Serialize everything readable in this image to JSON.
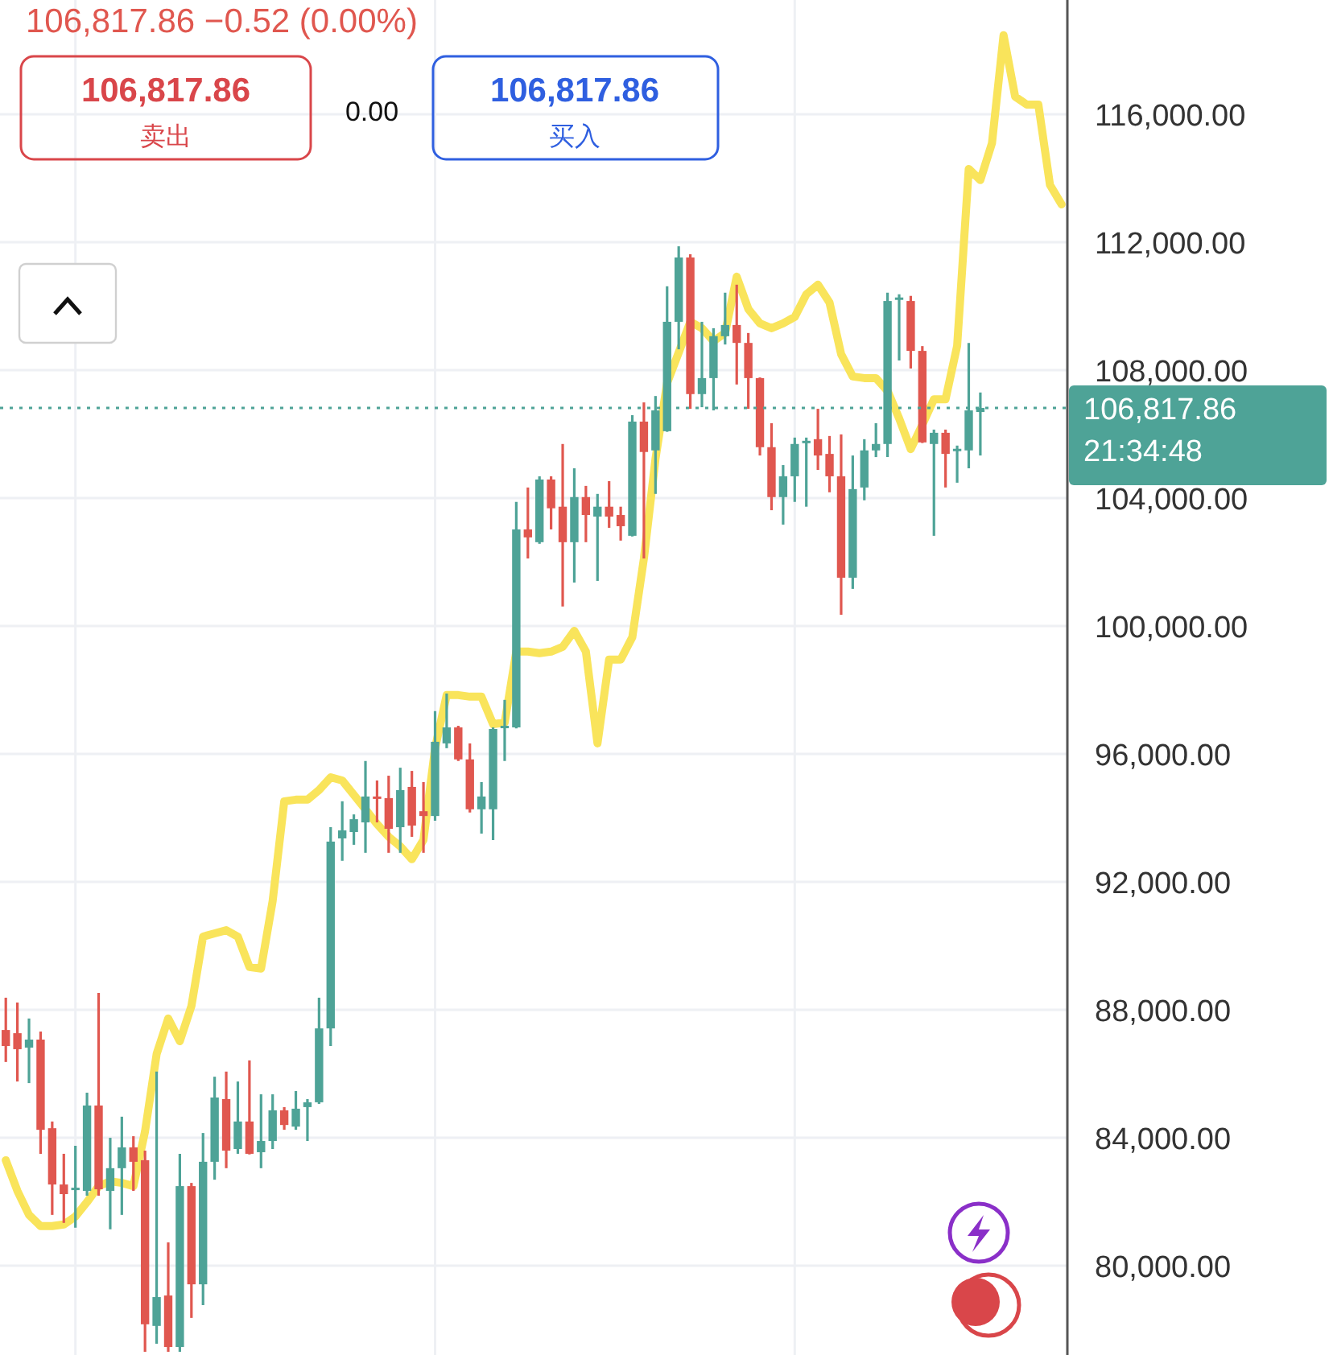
{
  "chart_data": {
    "type": "candlestick",
    "title": "106,817.86 −0.52 (0.00%)",
    "annotations": [
      "106,817.86",
      "卖出",
      "0.00",
      "106,817.86",
      "买入"
    ],
    "categories": [
      null,
      null,
      null,
      null,
      null,
      null,
      null,
      null,
      null,
      null,
      null,
      null,
      null,
      null,
      null,
      null,
      null,
      null,
      null,
      null,
      null,
      null,
      null,
      null,
      null,
      null,
      null,
      null,
      null,
      null,
      null,
      null,
      null,
      null,
      null,
      null,
      null,
      null,
      null,
      null,
      null,
      null,
      null,
      null,
      null,
      null,
      null,
      null,
      null,
      null,
      null,
      null,
      null,
      null,
      null,
      null,
      null,
      null,
      null,
      null,
      null,
      null,
      null,
      null,
      null,
      null,
      null,
      null,
      null,
      null,
      null,
      null,
      null,
      null,
      null,
      null,
      null,
      null,
      null,
      null,
      null,
      null,
      null,
      null,
      null,
      null,
      null,
      null,
      null,
      null,
      null,
      null
    ],
    "ohlc": [
      [
        87370,
        88380,
        86370,
        86870
      ],
      [
        87270,
        88230,
        85760,
        86770
      ],
      [
        86820,
        87730,
        85710,
        87070
      ],
      [
        87070,
        87320,
        83500,
        84250
      ],
      [
        84300,
        84510,
        81590,
        82540
      ],
      [
        82540,
        83500,
        81340,
        82240
      ],
      [
        82390,
        83750,
        81190,
        82440
      ],
      [
        82340,
        85410,
        82190,
        85010
      ],
      [
        85010,
        88530,
        82190,
        82390
      ],
      [
        82340,
        84000,
        81140,
        83050
      ],
      [
        83050,
        84660,
        81590,
        83700
      ],
      [
        83700,
        84050,
        82340,
        83250
      ],
      [
        83300,
        83600,
        77310,
        78170
      ],
      [
        78120,
        86070,
        77560,
        79020
      ],
      [
        79070,
        80730,
        77310,
        77460
      ],
      [
        77460,
        83500,
        77310,
        82490
      ],
      [
        82490,
        82590,
        78370,
        79420
      ],
      [
        79420,
        84150,
        78770,
        83250
      ],
      [
        83250,
        85910,
        82690,
        85260
      ],
      [
        85210,
        86070,
        83050,
        83600
      ],
      [
        83650,
        85760,
        83500,
        84510
      ],
      [
        84510,
        86420,
        83480,
        83500
      ],
      [
        83550,
        85360,
        83050,
        83900
      ],
      [
        83900,
        85360,
        83650,
        84860
      ],
      [
        84860,
        84960,
        84250,
        84400
      ],
      [
        84350,
        85460,
        84250,
        84910
      ],
      [
        84960,
        85210,
        83900,
        85110
      ],
      [
        85110,
        88380,
        85060,
        87420
      ],
      [
        87420,
        93710,
        86870,
        93260
      ],
      [
        93360,
        94520,
        92660,
        93610
      ],
      [
        93560,
        94110,
        93160,
        93960
      ],
      [
        93860,
        95780,
        92910,
        94670
      ],
      [
        94670,
        95170,
        93860,
        94620
      ],
      [
        94620,
        95320,
        92910,
        93660
      ],
      [
        93710,
        95570,
        92910,
        94870
      ],
      [
        94970,
        95470,
        93410,
        93760
      ],
      [
        94210,
        95120,
        92910,
        94060
      ],
      [
        94060,
        97340,
        93910,
        96380
      ],
      [
        96330,
        97890,
        96180,
        96830
      ],
      [
        96830,
        96880,
        95780,
        95830
      ],
      [
        95830,
        96330,
        94170,
        94270
      ],
      [
        94270,
        95120,
        93510,
        94670
      ],
      [
        94270,
        96830,
        93310,
        96780
      ],
      [
        96830,
        97690,
        95780,
        96880
      ],
      [
        96830,
        103880,
        96800,
        103020
      ],
      [
        103020,
        104330,
        102110,
        102770
      ],
      [
        102620,
        104680,
        102570,
        104580
      ],
      [
        104580,
        104680,
        103020,
        103680
      ],
      [
        103730,
        105690,
        100610,
        102620
      ],
      [
        102620,
        104930,
        101360,
        104030
      ],
      [
        104030,
        104380,
        102620,
        103470
      ],
      [
        103420,
        104130,
        101410,
        103730
      ],
      [
        103730,
        104530,
        103070,
        103420
      ],
      [
        103470,
        103730,
        102670,
        103120
      ],
      [
        102820,
        106590,
        102800,
        106390
      ],
      [
        106390,
        106990,
        102110,
        105440
      ],
      [
        105490,
        107190,
        104130,
        106740
      ],
      [
        106090,
        110620,
        106070,
        109510
      ],
      [
        109510,
        111870,
        108650,
        111520
      ],
      [
        111520,
        111620,
        106790,
        107250
      ],
      [
        107250,
        109510,
        106840,
        107750
      ],
      [
        107750,
        109310,
        106740,
        109060
      ],
      [
        109060,
        110420,
        108800,
        109410
      ],
      [
        109410,
        110670,
        107550,
        108850
      ],
      [
        108850,
        109160,
        106790,
        107750
      ],
      [
        107750,
        107770,
        105330,
        105590
      ],
      [
        105590,
        106340,
        103620,
        104030
      ],
      [
        104030,
        105030,
        103170,
        104680
      ],
      [
        104680,
        105890,
        103880,
        105690
      ],
      [
        105740,
        105890,
        103730,
        105790
      ],
      [
        105840,
        106790,
        104880,
        105330
      ],
      [
        105380,
        105940,
        104180,
        104680
      ],
      [
        104680,
        105990,
        100350,
        101510
      ],
      [
        101510,
        105330,
        101160,
        104280
      ],
      [
        104330,
        105840,
        103930,
        105490
      ],
      [
        105490,
        106340,
        105280,
        105690
      ],
      [
        105690,
        110420,
        105280,
        110160
      ],
      [
        110220,
        110370,
        108300,
        110270
      ],
      [
        110160,
        110320,
        108050,
        108600
      ],
      [
        108600,
        108750,
        105720,
        105740
      ],
      [
        105690,
        106140,
        102820,
        106040
      ],
      [
        106040,
        106140,
        104330,
        105380
      ],
      [
        105490,
        105640,
        104480,
        105540
      ],
      [
        105490,
        108850,
        104930,
        106740
      ],
      [
        106690,
        107300,
        105330,
        106817.86
      ],
      null,
      null,
      null,
      null,
      null,
      null,
      null
    ],
    "colors": [
      "#e0574f",
      "#e0574f",
      "#4ea397",
      "#e0574f",
      "#e0574f",
      "#e0574f",
      "#4ea397",
      "#4ea397",
      "#e0574f",
      "#4ea397",
      "#4ea397",
      "#e0574f",
      "#e0574f",
      "#4ea397",
      "#e0574f",
      "#4ea397",
      "#e0574f",
      "#4ea397",
      "#4ea397",
      "#e0574f",
      "#4ea397",
      "#e0574f",
      "#4ea397",
      "#4ea397",
      "#e0574f",
      "#4ea397",
      "#4ea397",
      "#4ea397",
      "#4ea397",
      "#4ea397",
      "#4ea397",
      "#4ea397",
      "#e0574f",
      "#e0574f",
      "#4ea397",
      "#e0574f",
      "#e0574f",
      "#4ea397",
      "#4ea397",
      "#e0574f",
      "#e0574f",
      "#4ea397",
      "#4ea397",
      "#4ea397",
      "#4ea397",
      "#e0574f",
      "#4ea397",
      "#e0574f",
      "#e0574f",
      "#4ea397",
      "#e0574f",
      "#4ea397",
      "#e0574f",
      "#e0574f",
      "#4ea397",
      "#e0574f",
      "#4ea397",
      "#4ea397",
      "#4ea397",
      "#e0574f",
      "#4ea397",
      "#4ea397",
      "#4ea397",
      "#e0574f",
      "#e0574f",
      "#e0574f",
      "#e0574f",
      "#4ea397",
      "#4ea397",
      "#4ea397",
      "#e0574f",
      "#e0574f",
      "#e0574f",
      "#4ea397",
      "#4ea397",
      "#4ea397",
      "#4ea397",
      "#4ea397",
      "#e0574f",
      "#e0574f",
      "#4ea397",
      "#e0574f",
      "#4ea397",
      "#4ea397",
      "#4ea397",
      null,
      null,
      null,
      null,
      null,
      null,
      null
    ],
    "series": [
      {
        "type": "line",
        "color": "#f9e45b",
        "values": [
          83300,
          82340,
          81590,
          81240,
          81240,
          81290,
          81540,
          81990,
          82490,
          82640,
          82590,
          82490,
          84200,
          86620,
          87730,
          87020,
          88120,
          90290,
          90390,
          90490,
          90290,
          89340,
          89290,
          91400,
          94520,
          94570,
          94570,
          94870,
          95270,
          95170,
          94720,
          94270,
          93810,
          93410,
          93110,
          92710,
          93310,
          96180,
          97840,
          97840,
          97790,
          97790,
          96930,
          96980,
          99200,
          99200,
          99150,
          99200,
          99350,
          99850,
          99200,
          96330,
          98950,
          98950,
          99650,
          102110,
          105230,
          107600,
          108550,
          109510,
          109310,
          108910,
          109160,
          110920,
          109910,
          109460,
          109310,
          109460,
          109660,
          110370,
          110670,
          110110,
          108500,
          107800,
          107750,
          107750,
          107350,
          106490,
          105530,
          106290,
          107090,
          107090,
          108760,
          114290,
          113940,
          115090,
          118470,
          116550,
          116300,
          116300,
          113790,
          113180
        ]
      }
    ],
    "ylim": [
      77210,
      119570
    ],
    "yticks": [
      {
        "value": 80000,
        "label": "80,000.00"
      },
      {
        "value": 84000,
        "label": "84,000.00"
      },
      {
        "value": 88000,
        "label": "88,000.00"
      },
      {
        "value": 92000,
        "label": "92,000.00"
      },
      {
        "value": 96000,
        "label": "96,000.00"
      },
      {
        "value": 100000,
        "label": "100,000.00"
      },
      {
        "value": 104000,
        "label": "104,000.00"
      },
      {
        "value": 108000,
        "label": "108,000.00"
      },
      {
        "value": 112000,
        "label": "112,000.00"
      },
      {
        "value": 116000,
        "label": "116,000.00"
      }
    ],
    "ref_lines": [
      {
        "axis": "y",
        "value": 106817.86,
        "label": "106,817.86\n21:34:48",
        "color": "#4ea397",
        "line_style": "dotted"
      }
    ],
    "grid": true,
    "tick_labels": "y"
  }
}
